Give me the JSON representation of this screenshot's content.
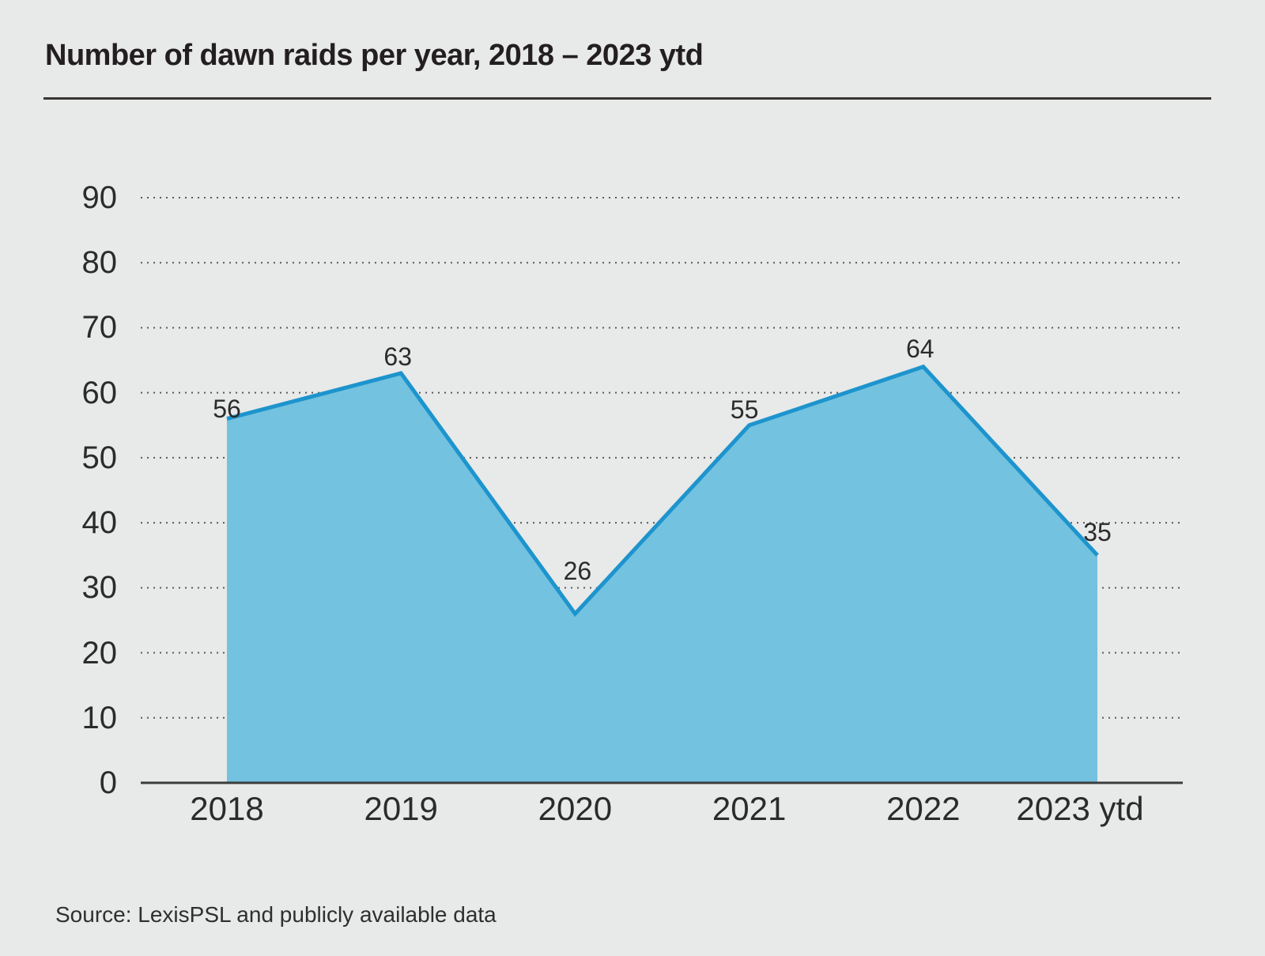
{
  "title": "Number of dawn raids per year, 2018 – 2023 ytd",
  "source_note": "Source: LexisPSL and publicly available data",
  "colors": {
    "background": "#e8e9e9",
    "area_fill": "#73c2df",
    "line": "#1d94cd",
    "gridline": "#595959",
    "axis_line": "#3c3c3c",
    "title_rule": "#3a3734",
    "text": "#2b2b2b",
    "title_text": "#231f20"
  },
  "chart_data": {
    "type": "area",
    "title": "Number of dawn raids per year, 2018 – 2023 ytd",
    "categories": [
      "2018",
      "2019",
      "2020",
      "2021",
      "2022",
      "2023 ytd"
    ],
    "values": [
      56,
      63,
      26,
      55,
      64,
      35
    ],
    "xlabel": "",
    "ylabel": "",
    "ylim": [
      0,
      90
    ],
    "yticks": [
      0,
      10,
      20,
      30,
      40,
      50,
      60,
      70,
      80,
      90
    ],
    "grid": "horizontal-dotted",
    "legend_position": "none",
    "data_labels_shown": true,
    "source": "Source: LexisPSL and publicly available data"
  }
}
